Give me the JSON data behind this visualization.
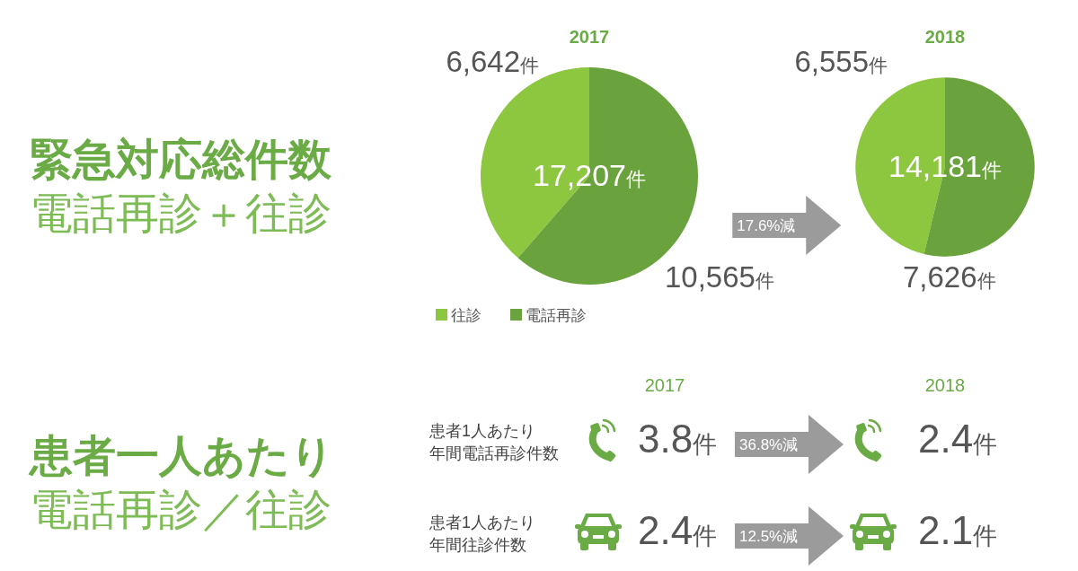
{
  "chart_data": [
    {
      "type": "other",
      "title": "緊急対応総件数",
      "subtitle": "電話再診＋往診"
    },
    {
      "type": "pie",
      "title": "2017",
      "categories": [
        "往診",
        "電話再診"
      ],
      "values": [
        6642,
        10565
      ],
      "colors": [
        "#8dc63f",
        "#6aa23d"
      ],
      "value_labels": [
        "6,642件",
        "10,565件"
      ],
      "annotations": [
        "17,207件"
      ],
      "legend": "bottom"
    },
    {
      "type": "pie",
      "title": "2018",
      "categories": [
        null,
        null
      ],
      "values": [
        6555,
        7626
      ],
      "colors": [
        "#8dc63f",
        "#6aa23d"
      ],
      "value_labels": [
        "6,555件",
        "7,626件"
      ],
      "annotations": [
        "14,181件",
        "17.6%減"
      ]
    },
    {
      "type": "other",
      "title": "患者一人あたり",
      "subtitle": "電話再診／往診",
      "annotations": [
        "2017",
        "2018",
        "患者1人あたり",
        "年間電話再診件数",
        "3.8件",
        "36.8%減",
        "2.4件",
        "患者1人あたり",
        "年間往診件数",
        "2.4件",
        "12.5%減",
        "2.1件"
      ]
    }
  ]
}
